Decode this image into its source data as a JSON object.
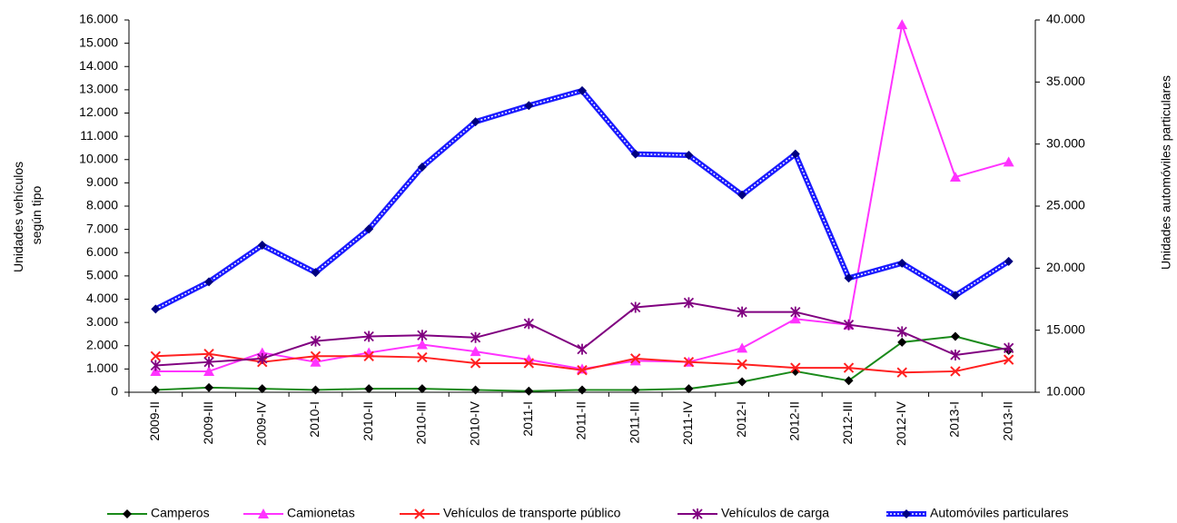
{
  "chart_data": {
    "type": "line",
    "y_label": [
      "Unidades vehículos",
      "según tipo"
    ],
    "y2_label": "Unidades automóviles particulares",
    "categories": [
      "2009-II",
      "2009-III",
      "2009-IV",
      "2010-I",
      "2010-II",
      "2010-III",
      "2010-IV",
      "2011-I",
      "2011-II",
      "2011-III",
      "2011-IV",
      "2012-I",
      "2012-II",
      "2012-III",
      "2012-IV",
      "2013-I",
      "2013-II"
    ],
    "ylim": [
      0,
      16000
    ],
    "yticks": [
      0,
      {
        "value": 1000,
        "label": "1.000"
      },
      {
        "value": 2000,
        "label": "2.000"
      },
      {
        "value": 3000,
        "label": "3.000"
      },
      {
        "value": 4000,
        "label": "4.000"
      },
      {
        "value": 5000,
        "label": "5.000"
      },
      {
        "value": 6000,
        "label": "6.000"
      },
      {
        "value": 7000,
        "label": "7.000"
      },
      {
        "value": 8000,
        "label": "8.000"
      },
      {
        "value": 9000,
        "label": "9.000"
      },
      {
        "value": 10000,
        "label": "10.000"
      },
      {
        "value": 11000,
        "label": "11.000"
      },
      {
        "value": 12000,
        "label": "12.000"
      },
      {
        "value": 13000,
        "label": "13.000"
      },
      {
        "value": 14000,
        "label": "14.000"
      },
      {
        "value": 15000,
        "label": "15.000"
      },
      {
        "value": 16000,
        "label": "16.000"
      }
    ],
    "y2lim": [
      10000,
      40000
    ],
    "y2ticks": [
      {
        "value": 10000,
        "label": "10.000"
      },
      {
        "value": 15000,
        "label": "15.000"
      },
      {
        "value": 20000,
        "label": "20.000"
      },
      {
        "value": 25000,
        "label": "25.000"
      },
      {
        "value": 30000,
        "label": "30.000"
      },
      {
        "value": 35000,
        "label": "35.000"
      },
      {
        "value": 40000,
        "label": "40.000"
      }
    ],
    "grid": false,
    "legend": "bottom",
    "series": [
      {
        "name": "Camperos",
        "color": "#1a8a1a",
        "marker": "diamond",
        "marker_color": "#000000",
        "values": [
          100,
          200,
          150,
          100,
          150,
          150,
          100,
          50,
          100,
          100,
          150,
          450,
          900,
          500,
          2150,
          2400,
          1800
        ]
      },
      {
        "name": "Camionetas",
        "color": "#ff33ff",
        "marker": "triangle",
        "marker_color": "#ff33ff",
        "values": [
          900,
          900,
          1700,
          1300,
          1700,
          2050,
          1750,
          1400,
          1000,
          1350,
          1300,
          1900,
          3150,
          2900,
          15800,
          9250,
          9900
        ]
      },
      {
        "name": "Vehículos de transporte público",
        "color": "#ff2020",
        "marker": "x",
        "marker_color": "#ff2020",
        "values": [
          1550,
          1650,
          1300,
          1550,
          1550,
          1500,
          1250,
          1250,
          950,
          1450,
          1300,
          1200,
          1050,
          1050,
          850,
          900,
          1400
        ]
      },
      {
        "name": "Vehículos de carga",
        "color": "#800080",
        "marker": "asterisk",
        "marker_color": "#800080",
        "values": [
          1150,
          1300,
          1450,
          2200,
          2400,
          2450,
          2350,
          2950,
          1850,
          3650,
          3850,
          3450,
          3450,
          2900,
          2600,
          1600,
          1900
        ]
      },
      {
        "name": "Automóviles particulares",
        "color": "#1a1aff",
        "marker": "diamond",
        "marker_color": "#000080",
        "axis": "y2",
        "values": [
          16700,
          18900,
          21850,
          19650,
          23150,
          28150,
          31800,
          33100,
          34300,
          29200,
          29100,
          25900,
          29200,
          19200,
          20400,
          17800,
          20550
        ]
      }
    ]
  }
}
